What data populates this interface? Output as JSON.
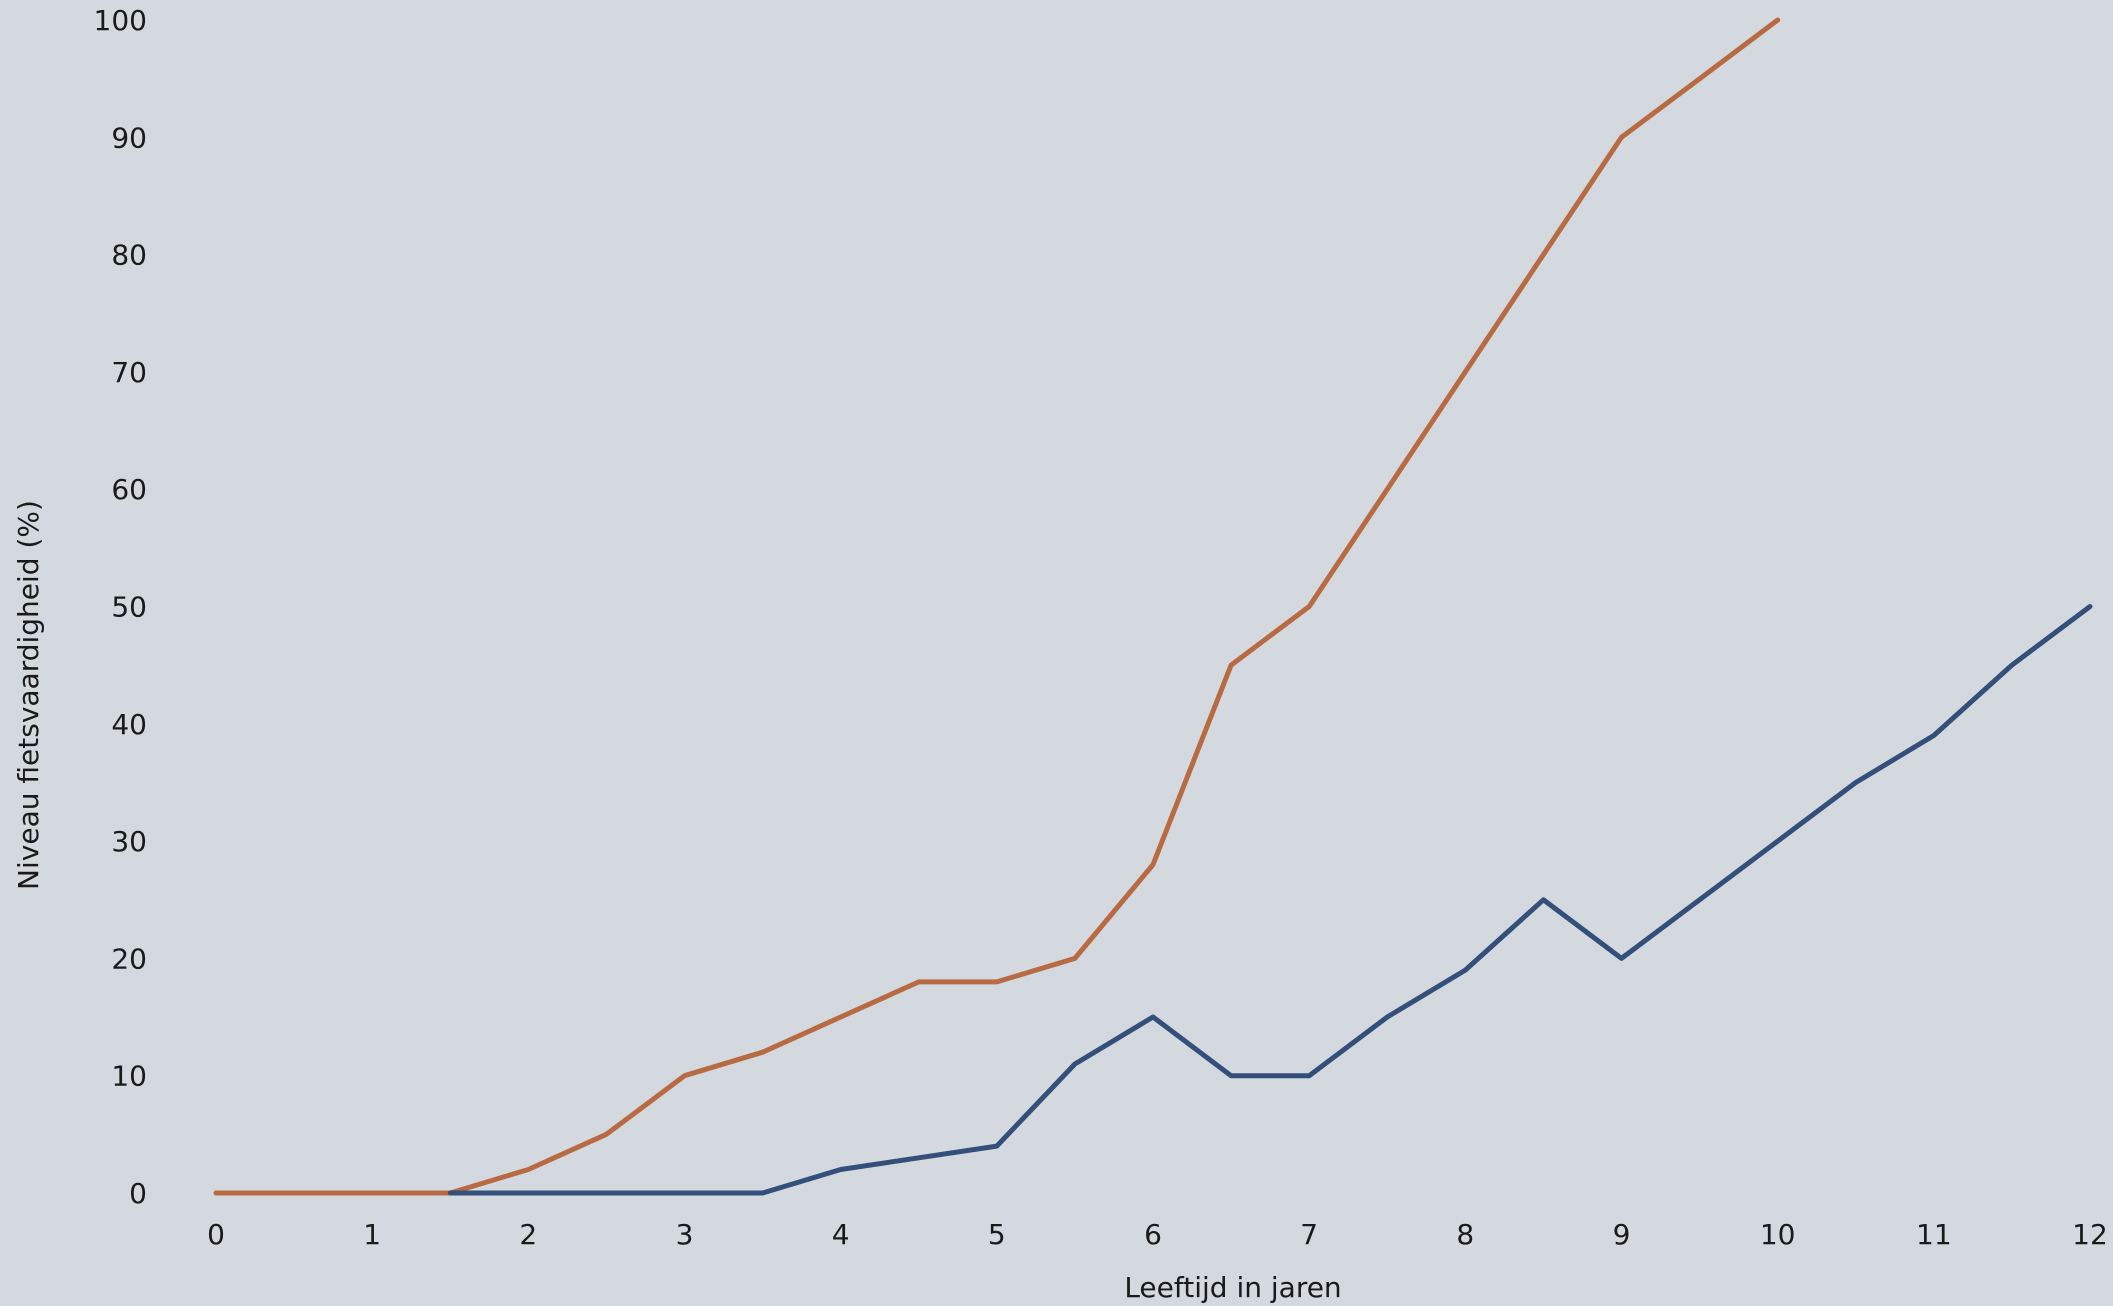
{
  "chart_data": {
    "type": "line",
    "title": "",
    "xlabel": "Leeftijd in jaren",
    "ylabel": "Niveau fietsvaardigheid (%)",
    "xlim": [
      0,
      12
    ],
    "ylim": [
      0,
      100
    ],
    "x_ticks": [
      "0",
      "1",
      "2",
      "3",
      "4",
      "5",
      "6",
      "7",
      "8",
      "9",
      "10",
      "11",
      "12"
    ],
    "y_ticks": [
      "0",
      "10",
      "20",
      "30",
      "40",
      "50",
      "60",
      "70",
      "80",
      "90",
      "100"
    ],
    "grid": false,
    "legend": "none",
    "series": [
      {
        "color": "#b86a43",
        "x": [
          0,
          0.5,
          1,
          1.5,
          2,
          2.5,
          3,
          3.5,
          4,
          4.5,
          5,
          5.5,
          6,
          6.5,
          7,
          7.5,
          8,
          8.5,
          9,
          9.5,
          10
        ],
        "values": [
          0,
          0,
          0,
          0,
          2,
          5,
          10,
          12,
          15,
          18,
          18,
          20,
          28,
          45,
          50,
          60,
          70,
          80,
          90,
          95,
          100
        ]
      },
      {
        "color": "#344f7a",
        "x": [
          1.5,
          2,
          2.5,
          3,
          3.5,
          4,
          4.5,
          5,
          5.5,
          6,
          6.5,
          7,
          7.5,
          8,
          8.5,
          9,
          9.5,
          10,
          10.5,
          11,
          11.5,
          12
        ],
        "values": [
          0,
          0,
          0,
          0,
          0,
          2,
          3,
          4,
          11,
          15,
          10,
          10,
          15,
          19,
          25,
          20,
          25,
          30,
          35,
          39,
          45,
          50
        ]
      }
    ]
  }
}
